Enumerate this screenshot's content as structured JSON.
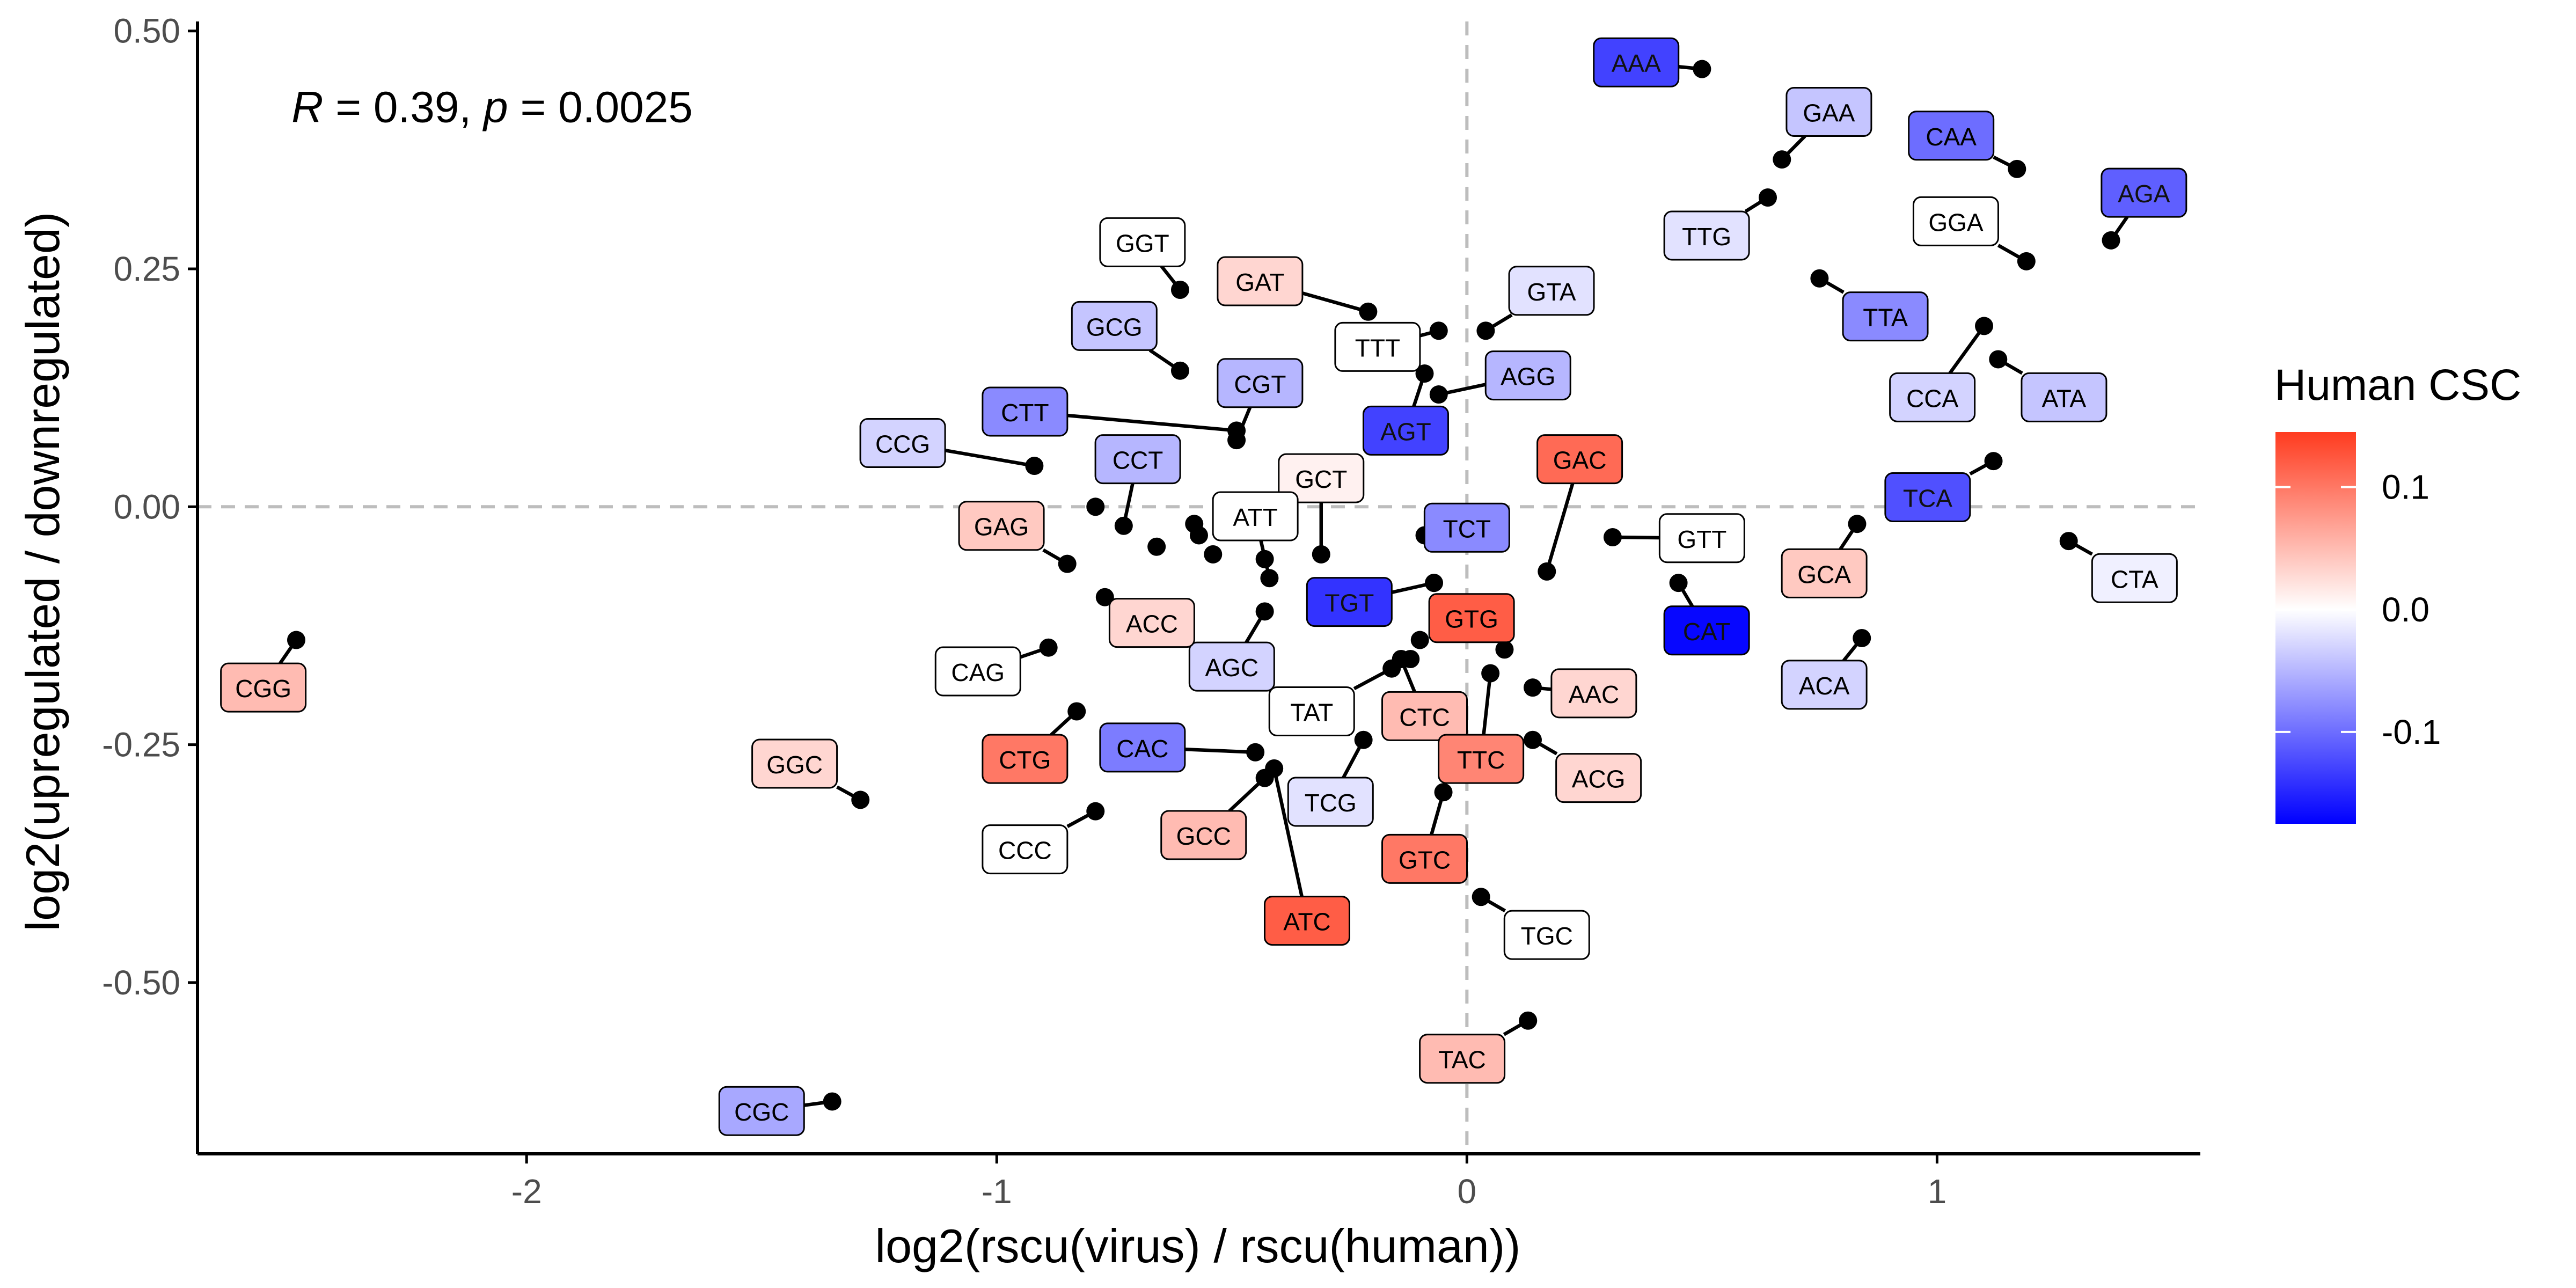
{
  "chart_data": {
    "type": "scatter",
    "title": "",
    "subtitle": "",
    "xlabel": "log2(rscu(virus) / rscu(human))",
    "ylabel": "log2(upregulated / downregulated)",
    "xlim": [
      -2.7,
      1.56
    ],
    "ylim": [
      -0.68,
      0.51
    ],
    "x_ticks": [
      {
        "value": -2,
        "label": "-2"
      },
      {
        "value": -1,
        "label": "-1"
      },
      {
        "value": 0,
        "label": "0"
      },
      {
        "value": 1,
        "label": "1"
      }
    ],
    "y_ticks": [
      {
        "value": 0.5,
        "label": "0.50"
      },
      {
        "value": 0.25,
        "label": "0.25"
      },
      {
        "value": 0.0,
        "label": "0.00"
      },
      {
        "value": -0.25,
        "label": "-0.25"
      },
      {
        "value": -0.5,
        "label": "-0.50"
      }
    ],
    "grid": false,
    "reference_lines": {
      "x": 0,
      "y": 0,
      "style": "dashed",
      "color": "#bdbdbd"
    },
    "annotation": {
      "r_symbol": "R",
      "r_value": " = 0.39, ",
      "p_symbol": "p",
      "p_value": " = 0.0025",
      "x": -2.5,
      "y": 0.42
    },
    "legend": {
      "title": "Human CSC",
      "placement": "right",
      "min": -0.175,
      "max": 0.145,
      "ticks": [
        {
          "value": 0.1,
          "label": "0.1"
        },
        {
          "value": 0.0,
          "label": "0.0"
        },
        {
          "value": -0.1,
          "label": "-0.1"
        }
      ],
      "colors": {
        "low": "#0000ff",
        "mid": "#ffffff",
        "high": "#ff3b1f"
      }
    },
    "points": [
      {
        "codon": "AAA",
        "x": 0.5,
        "y": 0.46,
        "lx": 0.36,
        "ly": 0.467,
        "csc": -0.13
      },
      {
        "codon": "GAA",
        "x": 0.67,
        "y": 0.365,
        "lx": 0.77,
        "ly": 0.415,
        "csc": -0.04
      },
      {
        "codon": "CAA",
        "x": 1.17,
        "y": 0.355,
        "lx": 1.03,
        "ly": 0.39,
        "csc": -0.1
      },
      {
        "codon": "AGA",
        "x": 1.37,
        "y": 0.28,
        "lx": 1.44,
        "ly": 0.33,
        "csc": -0.11
      },
      {
        "codon": "TTG",
        "x": 0.64,
        "y": 0.325,
        "lx": 0.51,
        "ly": 0.285,
        "csc": -0.02
      },
      {
        "codon": "GGA",
        "x": 1.19,
        "y": 0.258,
        "lx": 1.04,
        "ly": 0.3,
        "csc": 0.0
      },
      {
        "codon": "TTA",
        "x": 0.75,
        "y": 0.24,
        "lx": 0.89,
        "ly": 0.2,
        "csc": -0.08
      },
      {
        "codon": "CCA",
        "x": 1.1,
        "y": 0.19,
        "lx": 0.99,
        "ly": 0.115,
        "csc": -0.03
      },
      {
        "codon": "ATA",
        "x": 1.13,
        "y": 0.155,
        "lx": 1.27,
        "ly": 0.115,
        "csc": -0.04
      },
      {
        "codon": "TCA",
        "x": 1.12,
        "y": 0.048,
        "lx": 0.98,
        "ly": 0.01,
        "csc": -0.12
      },
      {
        "codon": "CTA",
        "x": 1.28,
        "y": -0.036,
        "lx": 1.42,
        "ly": -0.075,
        "csc": -0.01
      },
      {
        "codon": "GCA",
        "x": 0.83,
        "y": -0.018,
        "lx": 0.76,
        "ly": -0.07,
        "csc": 0.04
      },
      {
        "codon": "ACA",
        "x": 0.84,
        "y": -0.138,
        "lx": 0.76,
        "ly": -0.187,
        "csc": -0.03
      },
      {
        "codon": "GTT",
        "x": 0.31,
        "y": -0.032,
        "lx": 0.5,
        "ly": -0.033,
        "csc": 0.0
      },
      {
        "codon": "CAT",
        "x": 0.45,
        "y": -0.08,
        "lx": 0.51,
        "ly": -0.13,
        "csc": -0.17
      },
      {
        "codon": "GAC",
        "x": 0.17,
        "y": -0.068,
        "lx": 0.24,
        "ly": 0.05,
        "csc": 0.11
      },
      {
        "codon": "GTA",
        "x": 0.04,
        "y": 0.185,
        "lx": 0.18,
        "ly": 0.227,
        "csc": -0.02
      },
      {
        "codon": "AGG",
        "x": -0.06,
        "y": 0.118,
        "lx": 0.13,
        "ly": 0.138,
        "csc": -0.05
      },
      {
        "codon": "TTT",
        "x": -0.06,
        "y": 0.185,
        "lx": -0.19,
        "ly": 0.168,
        "csc": 0.0
      },
      {
        "codon": "AGT",
        "x": -0.09,
        "y": 0.14,
        "lx": -0.13,
        "ly": 0.08,
        "csc": -0.13
      },
      {
        "codon": "GAT",
        "x": -0.21,
        "y": 0.205,
        "lx": -0.44,
        "ly": 0.237,
        "csc": 0.03
      },
      {
        "codon": "GGT",
        "x": -0.61,
        "y": 0.228,
        "lx": -0.69,
        "ly": 0.278,
        "csc": 0.0
      },
      {
        "codon": "GCG",
        "x": -0.61,
        "y": 0.143,
        "lx": -0.75,
        "ly": 0.19,
        "csc": -0.04
      },
      {
        "codon": "CGT",
        "x": -0.49,
        "y": 0.07,
        "lx": -0.44,
        "ly": 0.13,
        "csc": -0.05
      },
      {
        "codon": "CTT",
        "x": -0.49,
        "y": 0.08,
        "lx": -0.94,
        "ly": 0.1,
        "csc": -0.08
      },
      {
        "codon": "CCG",
        "x": -0.92,
        "y": 0.043,
        "lx": -1.2,
        "ly": 0.067,
        "csc": -0.03
      },
      {
        "codon": "CCT",
        "x": -0.73,
        "y": -0.02,
        "lx": -0.7,
        "ly": 0.05,
        "csc": -0.05
      },
      {
        "codon": "GCT",
        "x": -0.31,
        "y": -0.05,
        "lx": -0.31,
        "ly": 0.03,
        "csc": 0.01
      },
      {
        "codon": "ATT",
        "x": -0.42,
        "y": -0.075,
        "lx": -0.45,
        "ly": -0.01,
        "csc": 0.0
      },
      {
        "codon": "GAG",
        "x": -0.85,
        "y": -0.06,
        "lx": -0.99,
        "ly": -0.02,
        "csc": 0.04
      },
      {
        "codon": "TCT",
        "x": -0.09,
        "y": -0.03,
        "lx": 0.0,
        "ly": -0.022,
        "csc": -0.08
      },
      {
        "codon": "TGT",
        "x": -0.07,
        "y": -0.08,
        "lx": -0.25,
        "ly": -0.1,
        "csc": -0.14
      },
      {
        "codon": "GTG",
        "x": 0.08,
        "y": -0.15,
        "lx": 0.01,
        "ly": -0.117,
        "csc": 0.12
      },
      {
        "codon": "AAC",
        "x": 0.14,
        "y": -0.19,
        "lx": 0.27,
        "ly": -0.196,
        "csc": 0.03
      },
      {
        "codon": "ACG",
        "x": 0.14,
        "y": -0.245,
        "lx": 0.28,
        "ly": -0.285,
        "csc": 0.03
      },
      {
        "codon": "CTC",
        "x": -0.14,
        "y": -0.16,
        "lx": -0.09,
        "ly": -0.22,
        "csc": 0.05
      },
      {
        "codon": "TTC",
        "x": 0.05,
        "y": -0.175,
        "lx": 0.03,
        "ly": -0.265,
        "csc": 0.09
      },
      {
        "codon": "GTC",
        "x": -0.05,
        "y": -0.3,
        "lx": -0.09,
        "ly": -0.37,
        "csc": 0.1
      },
      {
        "codon": "TGC",
        "x": 0.03,
        "y": -0.41,
        "lx": 0.17,
        "ly": -0.45,
        "csc": 0.0
      },
      {
        "codon": "TAC",
        "x": 0.13,
        "y": -0.54,
        "lx": -0.01,
        "ly": -0.58,
        "csc": 0.05
      },
      {
        "codon": "TCG",
        "x": -0.22,
        "y": -0.245,
        "lx": -0.29,
        "ly": -0.31,
        "csc": -0.02
      },
      {
        "codon": "TAT",
        "x": -0.16,
        "y": -0.17,
        "lx": -0.33,
        "ly": -0.215,
        "csc": 0.0
      },
      {
        "codon": "ATC",
        "x": -0.41,
        "y": -0.275,
        "lx": -0.34,
        "ly": -0.435,
        "csc": 0.12
      },
      {
        "codon": "GCC",
        "x": -0.43,
        "y": -0.285,
        "lx": -0.56,
        "ly": -0.345,
        "csc": 0.05
      },
      {
        "codon": "CAC",
        "x": -0.45,
        "y": -0.258,
        "lx": -0.69,
        "ly": -0.253,
        "csc": -0.09
      },
      {
        "codon": "AGC",
        "x": -0.43,
        "y": -0.11,
        "lx": -0.5,
        "ly": -0.168,
        "csc": -0.03
      },
      {
        "codon": "ACC",
        "x": -0.77,
        "y": -0.095,
        "lx": -0.67,
        "ly": -0.122,
        "csc": 0.03
      },
      {
        "codon": "CAG",
        "x": -0.89,
        "y": -0.148,
        "lx": -1.04,
        "ly": -0.173,
        "csc": 0.0
      },
      {
        "codon": "CTG",
        "x": -0.83,
        "y": -0.215,
        "lx": -0.94,
        "ly": -0.265,
        "csc": 0.1
      },
      {
        "codon": "CCC",
        "x": -0.79,
        "y": -0.32,
        "lx": -0.94,
        "ly": -0.36,
        "csc": 0.0
      },
      {
        "codon": "GGC",
        "x": -1.29,
        "y": -0.308,
        "lx": -1.43,
        "ly": -0.27,
        "csc": 0.03
      },
      {
        "codon": "CGG",
        "x": -2.49,
        "y": -0.14,
        "lx": -2.56,
        "ly": -0.19,
        "csc": 0.05
      },
      {
        "codon": "CGC",
        "x": -1.35,
        "y": -0.625,
        "lx": -1.5,
        "ly": -0.635,
        "csc": -0.06
      },
      {
        "codon": "",
        "x": -0.79,
        "y": 0.0,
        "lx": null,
        "ly": null,
        "csc": 0
      },
      {
        "codon": "",
        "x": -0.66,
        "y": -0.042,
        "lx": null,
        "ly": null,
        "csc": 0
      },
      {
        "codon": "",
        "x": -0.58,
        "y": -0.018,
        "lx": null,
        "ly": null,
        "csc": 0
      },
      {
        "codon": "",
        "x": -0.57,
        "y": -0.03,
        "lx": null,
        "ly": null,
        "csc": 0
      },
      {
        "codon": "",
        "x": -0.54,
        "y": -0.05,
        "lx": null,
        "ly": null,
        "csc": 0
      },
      {
        "codon": "",
        "x": -0.43,
        "y": -0.055,
        "lx": null,
        "ly": null,
        "csc": 0
      },
      {
        "codon": "",
        "x": -0.1,
        "y": -0.14,
        "lx": null,
        "ly": null,
        "csc": 0
      },
      {
        "codon": "",
        "x": -0.12,
        "y": -0.16,
        "lx": null,
        "ly": null,
        "csc": 0
      }
    ]
  }
}
